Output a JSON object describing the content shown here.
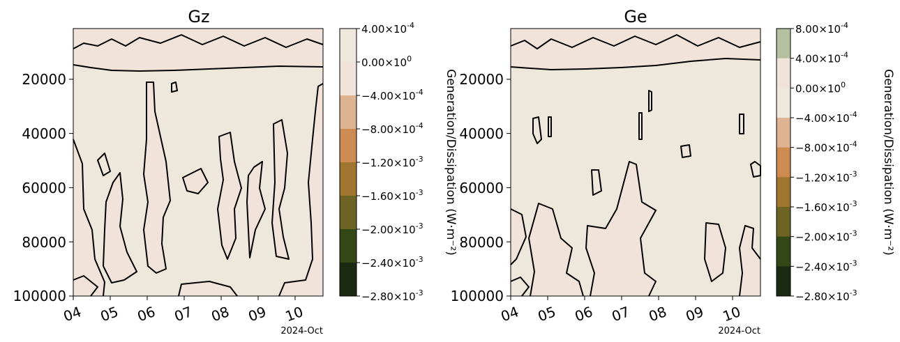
{
  "chart_data": [
    {
      "type": "heatmap",
      "title": "Gz",
      "x_tick_labels": [
        "04",
        "05",
        "06",
        "07",
        "08",
        "09",
        "10"
      ],
      "x_offset_label": "2024-Oct",
      "xlim": [
        4,
        10.7
      ],
      "y_tick_labels": [
        "20000",
        "40000",
        "60000",
        "80000",
        "100000"
      ],
      "ylim": [
        100000,
        1000
      ],
      "y_inverted": true,
      "colorbar": {
        "label": "Generation/Dissipation (W·m⁻²)",
        "tick_labels": [
          [
            "4.00×10",
            "-4"
          ],
          [
            "0.00×10",
            "0"
          ],
          [
            "−4.00×10",
            "-4"
          ],
          [
            "−8.00×10",
            "-4"
          ],
          [
            "−1.20×10",
            "-3"
          ],
          [
            "−1.60×10",
            "-3"
          ],
          [
            "−2.00×10",
            "-3"
          ],
          [
            "−2.40×10",
            "-3"
          ],
          [
            "−2.80×10",
            "-3"
          ]
        ],
        "levels": [
          0.0004,
          0.0,
          -0.0004,
          -0.0008,
          -0.0012,
          -0.0016,
          -0.002,
          -0.0024,
          -0.0028
        ],
        "colors": [
          "#eee8dc",
          "#f1e3d9",
          "#deb391",
          "#cd8b52",
          "#a07530",
          "#6c6325",
          "#344717",
          "#1b2b11"
        ]
      },
      "background_fill": "#eee8dc",
      "region_fill": "#f1e3d9"
    },
    {
      "type": "heatmap",
      "title": "Ge",
      "x_tick_labels": [
        "04",
        "05",
        "06",
        "07",
        "08",
        "09",
        "10"
      ],
      "x_offset_label": "2024-Oct",
      "xlim": [
        4,
        10.7
      ],
      "y_tick_labels": [
        "20000",
        "40000",
        "60000",
        "80000",
        "100000"
      ],
      "ylim": [
        100000,
        1000
      ],
      "y_inverted": true,
      "colorbar": {
        "label": "Generation/Dissipation (W·m⁻²)",
        "tick_labels": [
          [
            "8.00×10",
            "-4"
          ],
          [
            "4.00×10",
            "-4"
          ],
          [
            "0.00×10",
            "0"
          ],
          [
            "−4.00×10",
            "-4"
          ],
          [
            "−8.00×10",
            "-4"
          ],
          [
            "−1.20×10",
            "-3"
          ],
          [
            "−1.60×10",
            "-3"
          ],
          [
            "−2.00×10",
            "-3"
          ],
          [
            "−2.40×10",
            "-3"
          ],
          [
            "−2.80×10",
            "-3"
          ]
        ],
        "levels": [
          0.0008,
          0.0004,
          0.0,
          -0.0004,
          -0.0008,
          -0.0012,
          -0.0016,
          -0.002,
          -0.0024,
          -0.0028
        ],
        "colors": [
          "#b5c0a1",
          "#f1e3d9",
          "#eee8dc",
          "#deb391",
          "#cd8b52",
          "#a07530",
          "#6c6325",
          "#344717",
          "#1b2b11"
        ]
      },
      "background_fill": "#eee8dc",
      "region_fill": "#f1e3d9"
    }
  ]
}
